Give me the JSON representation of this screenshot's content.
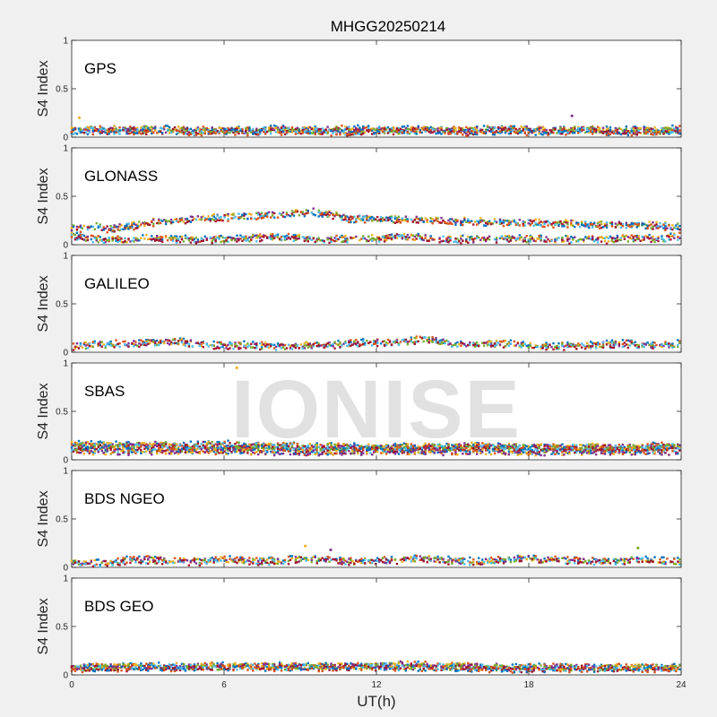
{
  "figure": {
    "title": "MHGG20250214",
    "watermark": "IONISE",
    "background": "#f0f0f0",
    "axes_background": "#ffffff"
  },
  "chart_data": {
    "type": "scatter",
    "title": "MHGG20250214",
    "xlabel": "UT(h)",
    "xlim": [
      0,
      24
    ],
    "xticks": [
      0,
      6,
      12,
      18,
      24
    ],
    "xtick_labels": [
      "0",
      "6",
      "12",
      "18",
      "24"
    ],
    "ylim": [
      0,
      1
    ],
    "yticks": [
      0,
      0.5,
      1
    ],
    "ytick_labels": [
      "0",
      "0.5",
      "1"
    ],
    "grid": false,
    "legend": "none",
    "series_colors": [
      "#0072bd",
      "#d95319",
      "#edb120",
      "#7e2f8e",
      "#77ac30",
      "#4dbeee",
      "#a2142f"
    ],
    "panels": [
      {
        "label": "GPS",
        "ylabel": "S4 Index",
        "series": [
          {
            "x": [
              0,
              1,
              2,
              3,
              4,
              5,
              6,
              7,
              8,
              9,
              10,
              11,
              12,
              13,
              14,
              15,
              16,
              17,
              18,
              19,
              20,
              21,
              22,
              23,
              24
            ],
            "y": [
              0.08,
              0.1,
              0.09,
              0.08,
              0.1,
              0.08,
              0.09,
              0.08,
              0.1,
              0.08,
              0.09,
              0.1,
              0.08,
              0.09,
              0.1,
              0.08,
              0.09,
              0.1,
              0.09,
              0.07,
              0.1,
              0.08,
              0.09,
              0.07,
              0.1
            ]
          },
          {
            "x": [
              0,
              1,
              2,
              3,
              4,
              5,
              6,
              7,
              8,
              9,
              10,
              11,
              12,
              13,
              14,
              15,
              16,
              17,
              18,
              19,
              20,
              21,
              22,
              23,
              24
            ],
            "y": [
              0.07,
              0.08,
              0.07,
              0.09,
              0.07,
              0.06,
              0.08,
              0.07,
              0.07,
              0.08,
              0.07,
              0.06,
              0.08,
              0.07,
              0.08,
              0.07,
              0.06,
              0.08,
              0.07,
              0.07,
              0.08,
              0.07,
              0.06,
              0.08,
              0.08
            ]
          },
          {
            "x": [
              0.3,
              19.7
            ],
            "y": [
              0.2,
              0.22
            ]
          }
        ]
      },
      {
        "label": "GLONASS",
        "ylabel": "S4 Index",
        "series": [
          {
            "x": [
              0,
              1,
              2,
              3,
              4,
              5,
              6,
              7,
              8,
              9,
              10,
              11,
              12,
              13,
              14,
              15,
              16,
              17,
              18,
              19,
              20,
              21,
              22,
              23,
              24
            ],
            "y": [
              0.1,
              0.07,
              0.06,
              0.08,
              0.07,
              0.06,
              0.07,
              0.08,
              0.09,
              0.08,
              0.07,
              0.07,
              0.08,
              0.09,
              0.08,
              0.07,
              0.06,
              0.08,
              0.07,
              0.06,
              0.07,
              0.06,
              0.08,
              0.07,
              0.1
            ]
          },
          {
            "x": [
              0.5,
              1,
              1.5,
              3.5,
              9.5,
              11,
              15.7,
              23.9
            ],
            "y": [
              0.18,
              0.2,
              0.17,
              0.25,
              0.35,
              0.28,
              0.25,
              0.2
            ]
          }
        ]
      },
      {
        "label": "GALILEO",
        "ylabel": "S4 Index",
        "series": [
          {
            "x": [
              0,
              1,
              2,
              3,
              4,
              5,
              6,
              7,
              8,
              9,
              10,
              11,
              12,
              13,
              14,
              15,
              16,
              17,
              18,
              19,
              20,
              21,
              22,
              23,
              24
            ],
            "y": [
              0.07,
              0.09,
              0.1,
              0.11,
              0.12,
              0.1,
              0.08,
              0.09,
              0.07,
              0.08,
              0.09,
              0.1,
              0.11,
              0.12,
              0.15,
              0.1,
              0.09,
              0.1,
              0.08,
              0.07,
              0.08,
              0.09,
              0.1,
              0.08,
              0.1
            ]
          }
        ]
      },
      {
        "label": "SBAS",
        "ylabel": "S4 Index",
        "series": [
          {
            "x": [
              0,
              2,
              4,
              6,
              8,
              10,
              12,
              14,
              16,
              18,
              20,
              22,
              24
            ],
            "y": [
              0.17,
              0.16,
              0.17,
              0.17,
              0.15,
              0.15,
              0.14,
              0.14,
              0.15,
              0.14,
              0.13,
              0.14,
              0.16
            ]
          },
          {
            "x": [
              0,
              2,
              4,
              6,
              8,
              10,
              12,
              14,
              16,
              18,
              20,
              22,
              24
            ],
            "y": [
              0.14,
              0.15,
              0.14,
              0.13,
              0.14,
              0.13,
              0.13,
              0.14,
              0.15,
              0.13,
              0.14,
              0.13,
              0.14
            ]
          },
          {
            "x": [
              0,
              2,
              4,
              6,
              8,
              10,
              12,
              14,
              16,
              18,
              20,
              22,
              24
            ],
            "y": [
              0.1,
              0.1,
              0.11,
              0.1,
              0.1,
              0.09,
              0.1,
              0.1,
              0.1,
              0.09,
              0.1,
              0.1,
              0.1
            ]
          },
          {
            "x": [
              6.5
            ],
            "y": [
              0.95
            ]
          }
        ]
      },
      {
        "label": "BDS NGEO",
        "ylabel": "S4 Index",
        "series": [
          {
            "x": [
              0,
              1,
              2,
              3,
              4,
              5,
              6,
              7,
              8,
              9,
              10,
              11,
              12,
              13,
              14,
              15,
              16,
              17,
              18,
              19,
              20,
              21,
              22,
              23,
              24
            ],
            "y": [
              0.06,
              0.05,
              0.08,
              0.09,
              0.08,
              0.07,
              0.09,
              0.08,
              0.07,
              0.1,
              0.09,
              0.07,
              0.08,
              0.09,
              0.1,
              0.08,
              0.07,
              0.09,
              0.1,
              0.09,
              0.08,
              0.07,
              0.09,
              0.08,
              0.07
            ]
          },
          {
            "x": [
              9.2,
              10.2,
              22.3
            ],
            "y": [
              0.22,
              0.18,
              0.2
            ]
          }
        ]
      },
      {
        "label": "BDS GEO",
        "ylabel": "S4 Index",
        "series": [
          {
            "x": [
              0,
              2,
              4,
              6,
              8,
              10,
              12,
              13,
              14,
              15,
              16,
              18,
              20,
              22,
              24
            ],
            "y": [
              0.09,
              0.09,
              0.1,
              0.1,
              0.1,
              0.1,
              0.1,
              0.12,
              0.11,
              0.1,
              0.1,
              0.09,
              0.09,
              0.09,
              0.09
            ]
          },
          {
            "x": [
              0,
              4,
              8,
              12,
              16,
              18,
              20,
              24
            ],
            "y": [
              0.08,
              0.09,
              0.09,
              0.09,
              0.08,
              0.07,
              0.08,
              0.08
            ]
          }
        ]
      }
    ]
  }
}
